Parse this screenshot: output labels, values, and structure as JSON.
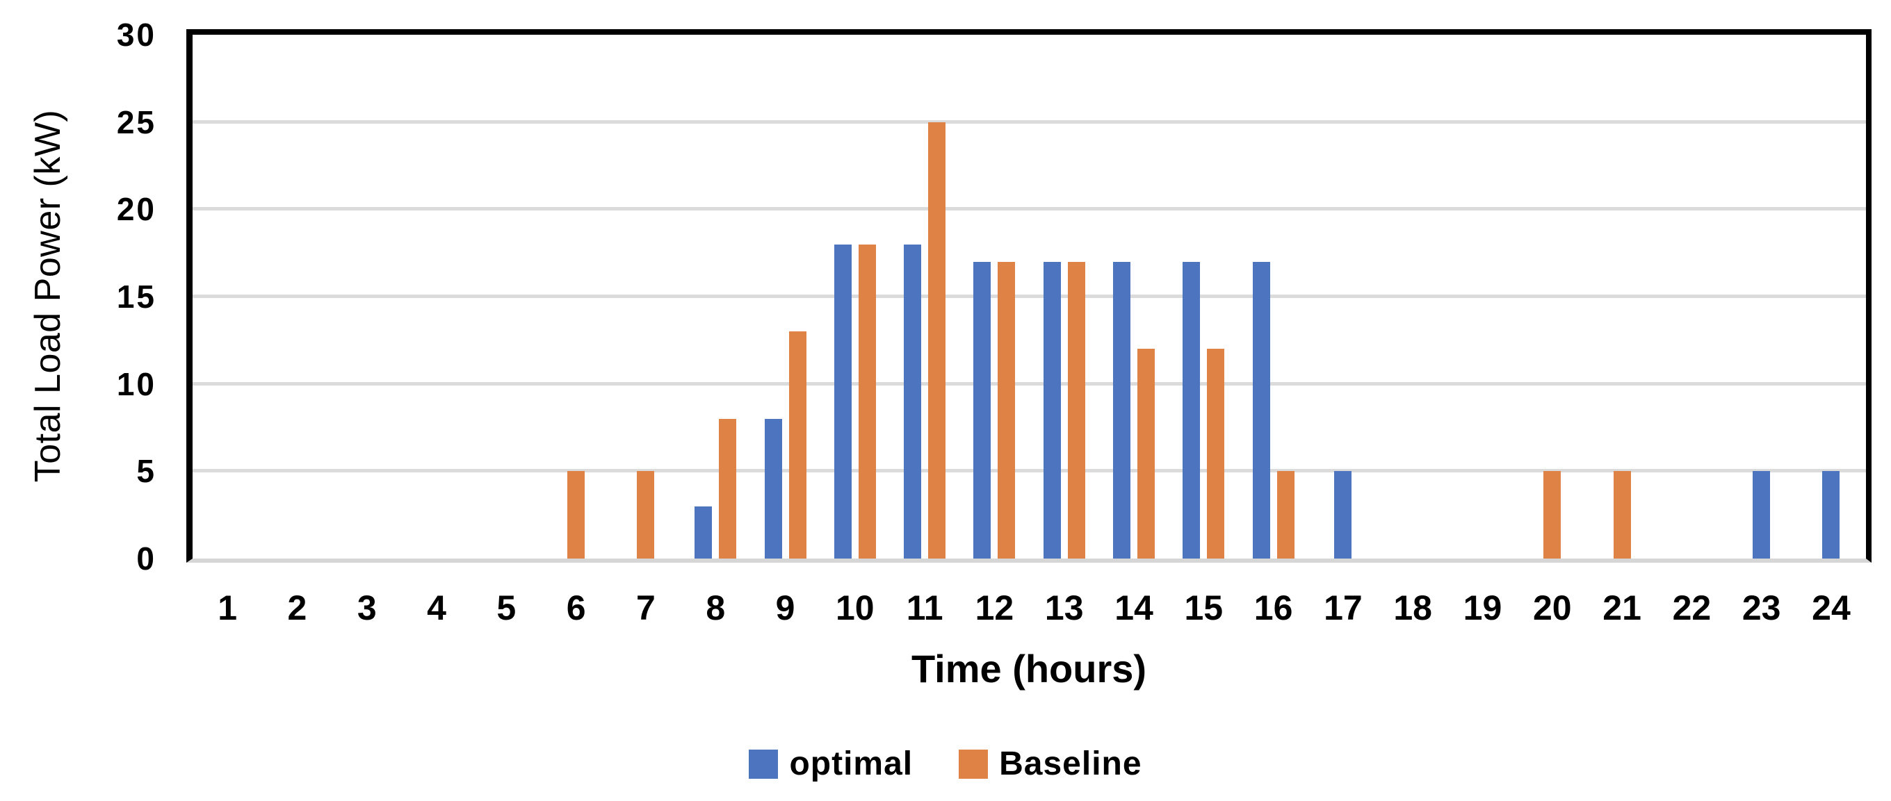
{
  "chart_data": {
    "type": "bar",
    "title": "",
    "xlabel": "Time (hours)",
    "ylabel": "Total Load Power (kW)",
    "categories": [
      1,
      2,
      3,
      4,
      5,
      6,
      7,
      8,
      9,
      10,
      11,
      12,
      13,
      14,
      15,
      16,
      17,
      18,
      19,
      20,
      21,
      22,
      23,
      24
    ],
    "series": [
      {
        "name": "optimal",
        "color": "#4c74bf",
        "values": [
          0,
          0,
          0,
          0,
          0,
          0,
          0,
          3,
          8,
          18,
          18,
          17,
          17,
          17,
          17,
          17,
          5,
          0,
          0,
          0,
          0,
          0,
          5,
          5
        ]
      },
      {
        "name": "Baseline",
        "color": "#df8245",
        "values": [
          0,
          0,
          0,
          0,
          0,
          5,
          5,
          8,
          13,
          18,
          25,
          17,
          17,
          12,
          12,
          5,
          0,
          0,
          0,
          5,
          5,
          0,
          0,
          0
        ]
      }
    ],
    "ylim": [
      0,
      30
    ],
    "yticks": [
      0,
      5,
      10,
      15,
      20,
      25,
      30
    ],
    "grid": "horizontal",
    "gridline_color": "#dbdbdb",
    "axis_border_color": "#000000",
    "legend_position": "bottom"
  }
}
